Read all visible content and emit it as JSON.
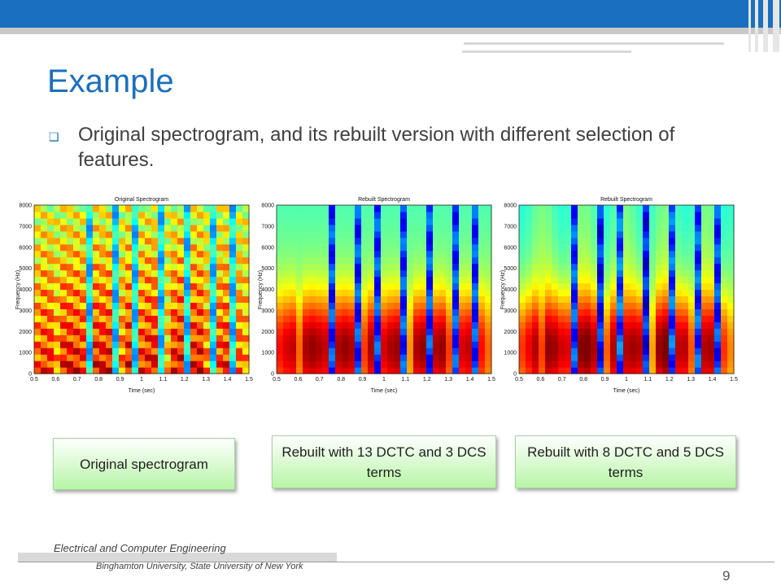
{
  "slide": {
    "title": "Example",
    "bullet": "Original spectrogram, and its rebuilt version with different selection of features."
  },
  "panels": [
    {
      "title": "Original Spectrogram",
      "xlabel": "Time (sec)",
      "ylabel": "Frequency (Hz)",
      "xticks": [
        "0.5",
        "0.6",
        "0.7",
        "0.8",
        "0.9",
        "1",
        "1.1",
        "1.2",
        "1.3",
        "1.4",
        "1.5"
      ],
      "yticks": [
        "0",
        "1000",
        "2000",
        "3000",
        "4000",
        "5000",
        "6000",
        "7000",
        "8000"
      ]
    },
    {
      "title": "Rebuilt Spectrogram",
      "xlabel": "Time (sec)",
      "ylabel": "Frequency (Hz)",
      "xticks": [
        "0.5",
        "0.6",
        "0.7",
        "0.8",
        "0.9",
        "1",
        "1.1",
        "1.2",
        "1.3",
        "1.4",
        "1.5"
      ],
      "yticks": [
        "0",
        "1000",
        "2000",
        "3000",
        "4000",
        "5000",
        "6000",
        "7000",
        "8000"
      ]
    },
    {
      "title": "Rebuilt Spectrogram",
      "xlabel": "Time (sec)",
      "ylabel": "Frequency (Hz)",
      "xticks": [
        "0.5",
        "0.6",
        "0.7",
        "0.8",
        "0.9",
        "1",
        "1.1",
        "1.2",
        "1.3",
        "1.4",
        "1.5"
      ],
      "yticks": [
        "0",
        "1000",
        "2000",
        "3000",
        "4000",
        "5000",
        "6000",
        "7000",
        "8000"
      ]
    }
  ],
  "captions": [
    "Original spectrogram",
    "Rebuilt with 13 DCTC and 3 DCS terms",
    "Rebuilt with 8 DCTC and 5 DCS terms"
  ],
  "footer": {
    "department": "Electrical and Computer Engineering",
    "university": "Binghamton University, State University of New York",
    "page_number": "9"
  },
  "colors": {
    "title_blue": "#1a6fc0",
    "caption_green": "#b7f5a6"
  }
}
